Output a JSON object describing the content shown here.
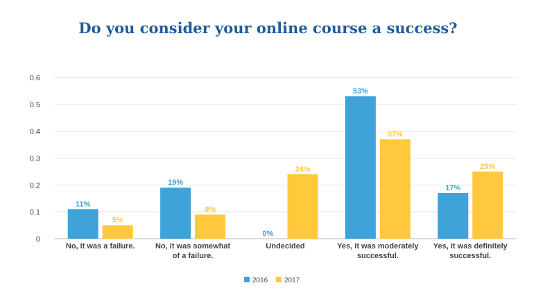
{
  "chart_data": {
    "type": "bar",
    "title": "Do you consider your online course a success?",
    "categories": [
      [
        "No, it was a failure."
      ],
      [
        "No, it was somewhat",
        "of a failure."
      ],
      [
        "Undecided"
      ],
      [
        "Yes, it was moderately",
        "successful."
      ],
      [
        "Yes, it was definitely",
        "successful."
      ]
    ],
    "series": [
      {
        "name": "2016",
        "color": "#3fa3d8",
        "values": [
          0.11,
          0.19,
          0,
          0.53,
          0.17
        ],
        "labels": [
          "11%",
          "19%",
          "0%",
          "53%",
          "17%"
        ]
      },
      {
        "name": "2017",
        "color": "#ffc83d",
        "values": [
          0.05,
          0.09,
          0.24,
          0.37,
          0.25
        ],
        "labels": [
          "5%",
          "9%",
          "24%",
          "37%",
          "25%"
        ]
      }
    ],
    "ylim": [
      0,
      0.6
    ],
    "yticks": [
      "0",
      "0.1",
      "0.2",
      "0.3",
      "0.4",
      "0.5",
      "0.6"
    ],
    "xlabel": "",
    "ylabel": "",
    "grid": true,
    "legend_position": "bottom"
  }
}
